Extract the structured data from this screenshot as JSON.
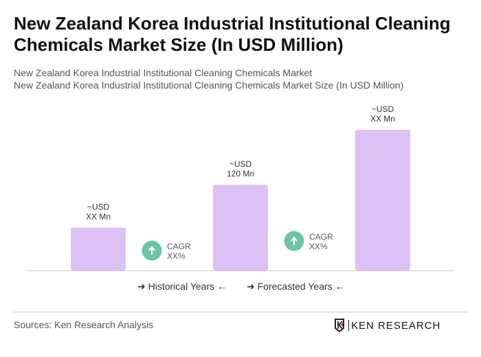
{
  "title": "New Zealand Korea Industrial Institutional Cleaning Chemicals Market Size (In USD Million)",
  "subtitle1": "New Zealand Korea Industrial Institutional Cleaning Chemicals Market",
  "subtitle2": "New Zealand Korea Industrial Institutional Cleaning Chemicals Market Size (In USD Million)",
  "chart_data": {
    "type": "bar",
    "categories": [
      "",
      "",
      ""
    ],
    "values": [
      60,
      120,
      197
    ],
    "data_labels": [
      [
        "~USD",
        "XX Mn"
      ],
      [
        "~USD",
        "120 Mn"
      ],
      [
        "~USD",
        "XX Mn"
      ]
    ],
    "bar_color": "#dcc1f5",
    "cagr": [
      {
        "label": "CAGR",
        "value": "XX%"
      },
      {
        "label": "CAGR",
        "value": "XX%"
      }
    ],
    "cagr_color": "#6cc5a0",
    "grid": false
  },
  "legend": {
    "historical": "Historical Years",
    "forecasted": "Forecasted Years"
  },
  "source": "Sources: Ken Research Analysis",
  "logo_text": "KEN RESEARCH"
}
